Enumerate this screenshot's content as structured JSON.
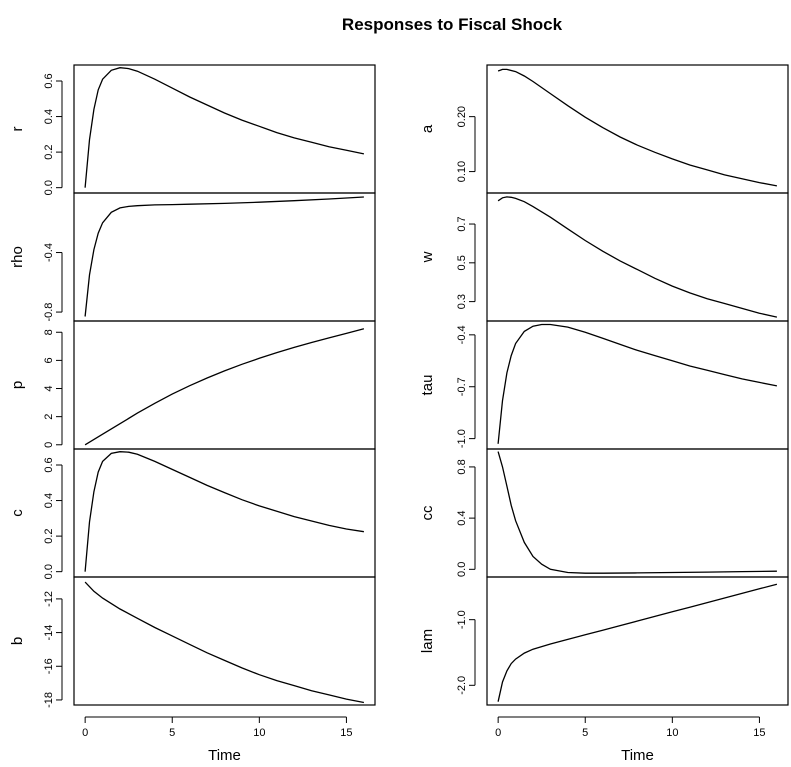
{
  "title": "Responses to Fiscal Shock",
  "x_axis": {
    "label": "Time",
    "ticks": [
      0,
      5,
      10,
      15
    ],
    "xlim": [
      -0.64,
      16.64
    ]
  },
  "chart_data": [
    {
      "type": "line",
      "column": "left",
      "ylabel": "r",
      "ylim": [
        -0.03,
        0.69
      ],
      "yticks": [
        "0.0",
        "0.2",
        "0.4",
        "0.6"
      ],
      "ytick_values": [
        0,
        0.2,
        0.4,
        0.6
      ],
      "x": [
        0,
        0.25,
        0.5,
        0.75,
        1,
        1.5,
        2,
        2.5,
        3,
        4,
        5,
        6,
        7,
        8,
        9,
        10,
        11,
        12,
        13,
        14,
        15,
        16
      ],
      "y": [
        0,
        0.27,
        0.44,
        0.55,
        0.61,
        0.66,
        0.675,
        0.67,
        0.655,
        0.61,
        0.56,
        0.51,
        0.465,
        0.42,
        0.38,
        0.345,
        0.31,
        0.28,
        0.255,
        0.23,
        0.21,
        0.19
      ]
    },
    {
      "type": "line",
      "column": "left",
      "ylabel": "rho",
      "ylim": [
        -0.86,
        0.0
      ],
      "yticks": [
        "-0.8",
        "-0.4"
      ],
      "ytick_values": [
        -0.8,
        -0.4
      ],
      "x": [
        0,
        0.25,
        0.5,
        0.75,
        1,
        1.5,
        2,
        2.5,
        3,
        4,
        5,
        6,
        8,
        10,
        12,
        14,
        16
      ],
      "y": [
        -0.83,
        -0.55,
        -0.38,
        -0.27,
        -0.2,
        -0.13,
        -0.1,
        -0.09,
        -0.085,
        -0.08,
        -0.078,
        -0.075,
        -0.07,
        -0.062,
        -0.052,
        -0.04,
        -0.027
      ]
    },
    {
      "type": "line",
      "column": "left",
      "ylabel": "p",
      "ylim": [
        -0.3,
        8.8
      ],
      "yticks": [
        "0",
        "2",
        "4",
        "6",
        "8"
      ],
      "ytick_values": [
        0,
        2,
        4,
        6,
        8
      ],
      "x": [
        0,
        1,
        2,
        3,
        4,
        5,
        6,
        7,
        8,
        9,
        10,
        11,
        12,
        13,
        14,
        15,
        16
      ],
      "y": [
        0,
        0.75,
        1.5,
        2.25,
        2.95,
        3.6,
        4.2,
        4.75,
        5.25,
        5.72,
        6.15,
        6.55,
        6.92,
        7.27,
        7.6,
        7.92,
        8.25
      ]
    },
    {
      "type": "line",
      "column": "left",
      "ylabel": "c",
      "ylim": [
        -0.03,
        0.69
      ],
      "yticks": [
        "0.0",
        "0.2",
        "0.4",
        "0.6"
      ],
      "ytick_values": [
        0,
        0.2,
        0.4,
        0.6
      ],
      "x": [
        0,
        0.25,
        0.5,
        0.75,
        1,
        1.5,
        2,
        2.5,
        3,
        4,
        5,
        6,
        7,
        8,
        9,
        10,
        11,
        12,
        13,
        14,
        15,
        16
      ],
      "y": [
        0,
        0.28,
        0.45,
        0.56,
        0.62,
        0.665,
        0.675,
        0.672,
        0.66,
        0.62,
        0.575,
        0.53,
        0.485,
        0.445,
        0.405,
        0.37,
        0.34,
        0.31,
        0.285,
        0.26,
        0.24,
        0.225
      ]
    },
    {
      "type": "line",
      "column": "left",
      "ylabel": "b",
      "ylim": [
        -18.3,
        -10.7
      ],
      "yticks": [
        "-18",
        "-16",
        "-14",
        "-12"
      ],
      "ytick_values": [
        -18,
        -16,
        -14,
        -12
      ],
      "x": [
        0,
        0.5,
        1,
        2,
        3,
        4,
        5,
        6,
        7,
        8,
        9,
        10,
        11,
        12,
        13,
        14,
        15,
        16
      ],
      "y": [
        -11.0,
        -11.55,
        -11.95,
        -12.6,
        -13.15,
        -13.7,
        -14.2,
        -14.7,
        -15.2,
        -15.65,
        -16.1,
        -16.5,
        -16.85,
        -17.15,
        -17.45,
        -17.7,
        -17.95,
        -18.15
      ]
    },
    {
      "type": "line",
      "column": "right",
      "ylabel": "a",
      "ylim": [
        0.061,
        0.294
      ],
      "yticks": [
        "0.10",
        "0.20"
      ],
      "ytick_values": [
        0.1,
        0.2
      ],
      "x": [
        0,
        0.25,
        0.5,
        1,
        1.5,
        2,
        3,
        4,
        5,
        6,
        7,
        8,
        9,
        10,
        11,
        12,
        13,
        14,
        15,
        16
      ],
      "y": [
        0.283,
        0.286,
        0.286,
        0.282,
        0.274,
        0.264,
        0.242,
        0.22,
        0.199,
        0.18,
        0.163,
        0.148,
        0.135,
        0.123,
        0.112,
        0.103,
        0.094,
        0.087,
        0.08,
        0.074
      ]
    },
    {
      "type": "line",
      "column": "right",
      "ylabel": "w",
      "ylim": [
        0.2,
        0.86
      ],
      "yticks": [
        "0.3",
        "0.5",
        "0.7"
      ],
      "ytick_values": [
        0.3,
        0.5,
        0.7
      ],
      "x": [
        0,
        0.25,
        0.5,
        0.75,
        1,
        1.5,
        2,
        3,
        4,
        5,
        6,
        7,
        8,
        9,
        10,
        11,
        12,
        13,
        14,
        15,
        16
      ],
      "y": [
        0.82,
        0.835,
        0.84,
        0.838,
        0.832,
        0.815,
        0.79,
        0.735,
        0.675,
        0.615,
        0.56,
        0.51,
        0.465,
        0.42,
        0.38,
        0.345,
        0.315,
        0.29,
        0.265,
        0.24,
        0.22
      ]
    },
    {
      "type": "line",
      "column": "right",
      "ylabel": "tau",
      "ylim": [
        -1.06,
        -0.32
      ],
      "yticks": [
        "-1.0",
        "-0.7",
        "-0.4"
      ],
      "ytick_values": [
        -1.0,
        -0.7,
        -0.4
      ],
      "x": [
        0,
        0.25,
        0.5,
        0.75,
        1,
        1.5,
        2,
        2.5,
        3,
        4,
        5,
        6,
        7,
        8,
        9,
        10,
        11,
        12,
        13,
        14,
        15,
        16
      ],
      "y": [
        -1.03,
        -0.78,
        -0.62,
        -0.52,
        -0.45,
        -0.38,
        -0.35,
        -0.34,
        -0.34,
        -0.355,
        -0.385,
        -0.42,
        -0.455,
        -0.49,
        -0.52,
        -0.55,
        -0.58,
        -0.605,
        -0.63,
        -0.655,
        -0.675,
        -0.695
      ]
    },
    {
      "type": "line",
      "column": "right",
      "ylabel": "cc",
      "ylim": [
        -0.06,
        0.94
      ],
      "yticks": [
        "0.0",
        "0.4",
        "0.8"
      ],
      "ytick_values": [
        0,
        0.4,
        0.8
      ],
      "x": [
        0,
        0.25,
        0.5,
        0.75,
        1,
        1.5,
        2,
        2.5,
        3,
        4,
        5,
        6,
        8,
        10,
        12,
        14,
        16
      ],
      "y": [
        0.92,
        0.8,
        0.65,
        0.5,
        0.38,
        0.21,
        0.1,
        0.04,
        0.0,
        -0.025,
        -0.03,
        -0.03,
        -0.028,
        -0.025,
        -0.022,
        -0.018,
        -0.015
      ]
    },
    {
      "type": "line",
      "column": "right",
      "ylabel": "lam",
      "ylim": [
        -2.3,
        -0.35
      ],
      "yticks": [
        "-2.0",
        "-1.0"
      ],
      "ytick_values": [
        -2.0,
        -1.0
      ],
      "x": [
        0,
        0.25,
        0.5,
        0.75,
        1,
        1.5,
        2,
        3,
        4,
        5,
        6,
        7,
        8,
        9,
        10,
        11,
        12,
        13,
        14,
        15,
        16
      ],
      "y": [
        -2.25,
        -1.95,
        -1.78,
        -1.67,
        -1.6,
        -1.51,
        -1.45,
        -1.37,
        -1.3,
        -1.23,
        -1.16,
        -1.09,
        -1.02,
        -0.95,
        -0.88,
        -0.81,
        -0.74,
        -0.67,
        -0.6,
        -0.53,
        -0.46
      ]
    }
  ]
}
